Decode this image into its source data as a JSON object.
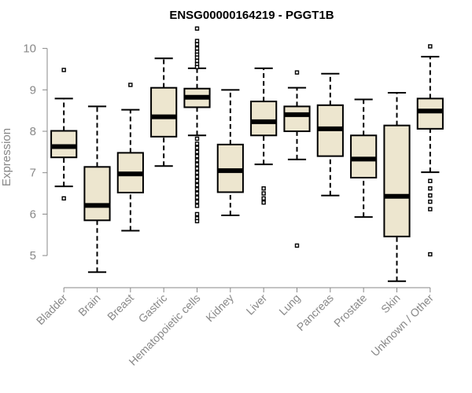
{
  "chart_data": {
    "type": "boxplot",
    "title": "ENSG00000164219 - PGGT1B",
    "ylabel": "Expression",
    "xlabel": "",
    "ylim": [
      4.3,
      10.6
    ],
    "yticks": [
      5,
      6,
      7,
      8,
      9,
      10
    ],
    "box_fill": "#ede6cf",
    "categories": [
      "Bladder",
      "Brain",
      "Breast",
      "Gastric",
      "Hematopoietic cells",
      "Kidney",
      "Liver",
      "Lung",
      "Pancreas",
      "Prostate",
      "Skin",
      "Unknown / Other"
    ],
    "boxes": [
      {
        "whisker_low": 6.67,
        "q1": 7.37,
        "median": 7.63,
        "q3": 8.01,
        "whisker_high": 8.79,
        "outliers": [
          6.38,
          9.48
        ]
      },
      {
        "whisker_low": 4.6,
        "q1": 5.85,
        "median": 6.21,
        "q3": 7.14,
        "whisker_high": 8.6,
        "outliers": []
      },
      {
        "whisker_low": 5.6,
        "q1": 6.52,
        "median": 6.97,
        "q3": 7.48,
        "whisker_high": 8.52,
        "outliers": [
          9.12
        ]
      },
      {
        "whisker_low": 7.16,
        "q1": 7.87,
        "median": 8.35,
        "q3": 9.05,
        "whisker_high": 9.76,
        "outliers": []
      },
      {
        "whisker_low": 7.9,
        "q1": 8.58,
        "median": 8.82,
        "q3": 9.03,
        "whisker_high": 9.52,
        "outliers": [
          10.48,
          10.18,
          10.1,
          10.0,
          9.92,
          9.85,
          9.78,
          9.7,
          9.62,
          9.55,
          7.82,
          7.7,
          7.6,
          7.5,
          7.4,
          7.3,
          7.2,
          7.1,
          7.0,
          6.9,
          6.8,
          6.7,
          6.6,
          6.5,
          6.4,
          6.3,
          6.2,
          6.0,
          5.9,
          5.83
        ]
      },
      {
        "whisker_low": 5.97,
        "q1": 6.53,
        "median": 7.05,
        "q3": 7.68,
        "whisker_high": 9.0,
        "outliers": []
      },
      {
        "whisker_low": 7.2,
        "q1": 7.9,
        "median": 8.23,
        "q3": 8.72,
        "whisker_high": 9.52,
        "outliers": [
          6.62,
          6.5,
          6.38,
          6.28
        ]
      },
      {
        "whisker_low": 7.32,
        "q1": 8.0,
        "median": 8.4,
        "q3": 8.6,
        "whisker_high": 9.05,
        "outliers": [
          9.42,
          5.24
        ]
      },
      {
        "whisker_low": 6.45,
        "q1": 7.4,
        "median": 8.06,
        "q3": 8.63,
        "whisker_high": 9.39,
        "outliers": []
      },
      {
        "whisker_low": 5.93,
        "q1": 6.88,
        "median": 7.33,
        "q3": 7.9,
        "whisker_high": 8.77,
        "outliers": []
      },
      {
        "whisker_low": 4.38,
        "q1": 5.46,
        "median": 6.43,
        "q3": 8.14,
        "whisker_high": 8.93,
        "outliers": []
      },
      {
        "whisker_low": 7.01,
        "q1": 8.06,
        "median": 8.49,
        "q3": 8.79,
        "whisker_high": 9.8,
        "outliers": [
          10.05,
          6.8,
          6.62,
          6.45,
          6.3,
          6.12,
          5.03
        ]
      }
    ]
  }
}
